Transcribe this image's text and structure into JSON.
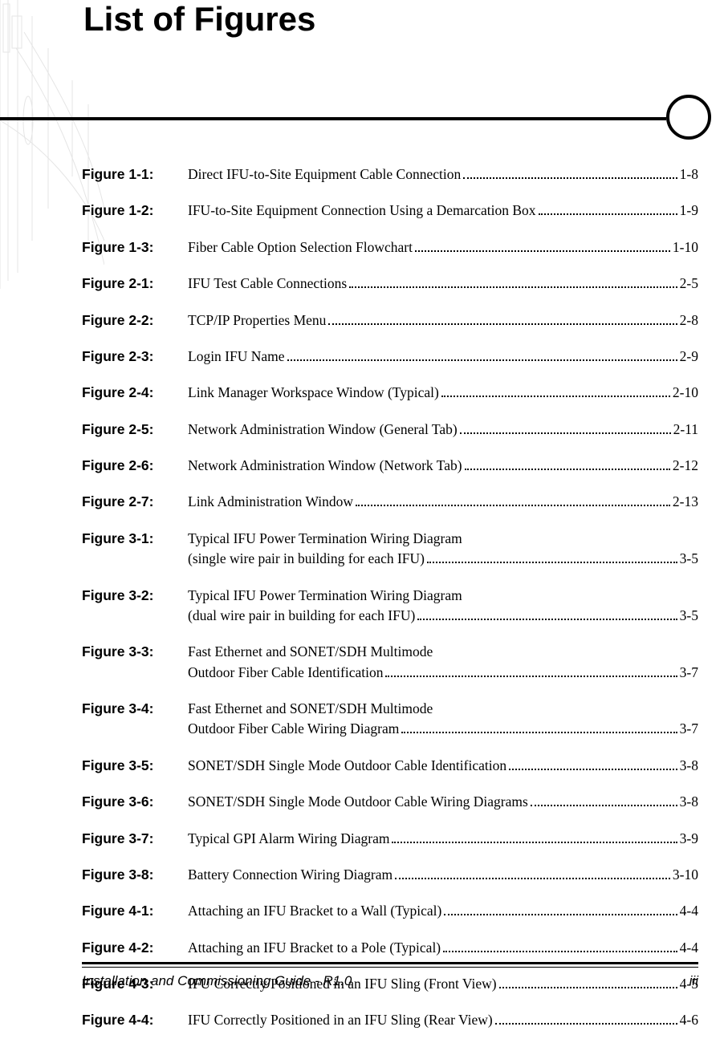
{
  "title": "List of Figures",
  "footer": {
    "left": "Installation and Commissioning Guide - R1.0",
    "right": "iii"
  },
  "figures": [
    {
      "label": "Figure 1-1:",
      "lines": [
        "Direct IFU-to-Site Equipment Cable Connection"
      ],
      "page": "1-8"
    },
    {
      "label": "Figure 1-2:",
      "lines": [
        "IFU-to-Site Equipment Connection Using a Demarcation Box"
      ],
      "page": "1-9"
    },
    {
      "label": "Figure 1-3:",
      "lines": [
        "Fiber Cable Option Selection Flowchart"
      ],
      "page": "1-10"
    },
    {
      "label": "Figure 2-1:",
      "lines": [
        "IFU Test Cable Connections"
      ],
      "page": "2-5"
    },
    {
      "label": "Figure 2-2:",
      "lines": [
        "TCP/IP Properties Menu"
      ],
      "page": "2-8"
    },
    {
      "label": "Figure 2-3:",
      "lines": [
        "Login IFU Name"
      ],
      "page": "2-9"
    },
    {
      "label": "Figure 2-4:",
      "lines": [
        "Link Manager Workspace Window (Typical)"
      ],
      "page": "2-10"
    },
    {
      "label": "Figure 2-5:",
      "lines": [
        "Network Administration Window (General Tab)"
      ],
      "page": "2-11"
    },
    {
      "label": "Figure 2-6:",
      "lines": [
        "Network Administration Window (Network Tab)"
      ],
      "page": "2-12"
    },
    {
      "label": "Figure 2-7:",
      "lines": [
        "Link Administration Window"
      ],
      "page": "2-13"
    },
    {
      "label": "Figure 3-1:",
      "lines": [
        "Typical IFU Power Termination Wiring Diagram",
        "(single wire pair in building for each IFU)"
      ],
      "page": "3-5"
    },
    {
      "label": "Figure 3-2:",
      "lines": [
        "Typical IFU Power Termination Wiring Diagram",
        "(dual wire pair in building for each IFU)"
      ],
      "page": "3-5"
    },
    {
      "label": "Figure 3-3:",
      "lines": [
        "Fast Ethernet and SONET/SDH Multimode",
        "Outdoor Fiber Cable Identification"
      ],
      "page": "3-7"
    },
    {
      "label": "Figure 3-4:",
      "lines": [
        "Fast Ethernet and SONET/SDH Multimode",
        "Outdoor Fiber Cable Wiring Diagram"
      ],
      "page": "3-7"
    },
    {
      "label": "Figure 3-5:",
      "lines": [
        "SONET/SDH Single Mode Outdoor Cable Identification"
      ],
      "page": "3-8"
    },
    {
      "label": "Figure 3-6:",
      "lines": [
        "SONET/SDH Single Mode Outdoor Cable Wiring Diagrams"
      ],
      "page": "3-8"
    },
    {
      "label": "Figure 3-7:",
      "lines": [
        "Typical GPI Alarm Wiring Diagram"
      ],
      "page": "3-9"
    },
    {
      "label": "Figure 3-8:",
      "lines": [
        "Battery Connection Wiring Diagram"
      ],
      "page": "3-10"
    },
    {
      "label": "Figure 4-1:",
      "lines": [
        "Attaching an IFU Bracket to a Wall (Typical)"
      ],
      "page": "4-4"
    },
    {
      "label": "Figure 4-2:",
      "lines": [
        "Attaching an IFU Bracket to a Pole (Typical)"
      ],
      "page": "4-4"
    },
    {
      "label": "Figure 4-3:",
      "lines": [
        "IFU Correctly Positioned in an IFU Sling (Front View)"
      ],
      "page": "4-5"
    },
    {
      "label": "Figure 4-4:",
      "lines": [
        "IFU Correctly Positioned in an IFU Sling (Rear View)"
      ],
      "page": "4-6"
    }
  ]
}
